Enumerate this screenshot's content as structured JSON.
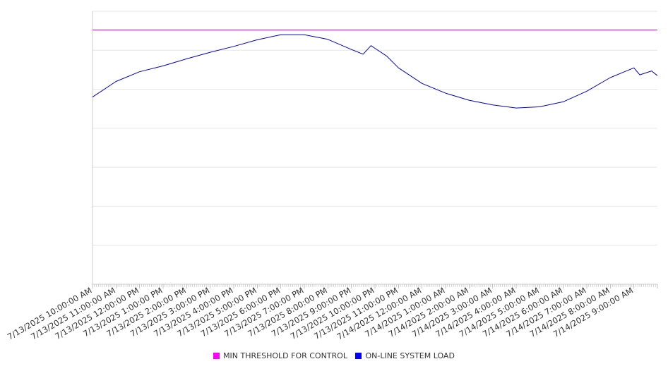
{
  "chart_data": {
    "type": "line",
    "title": "",
    "xlabel": "",
    "ylabel": "",
    "y_tick_labels_visible": false,
    "grid": "horizontal",
    "legend_position": "bottom-center",
    "ylim": [
      0,
      7
    ],
    "x_start": "7/13/2025 10:00:00 AM",
    "x_end": "7/14/2025 10:00:00 AM",
    "x_tick_labels": [
      "7/13/2025 10:00:00 AM",
      "7/13/2025 11:00:00 AM",
      "7/13/2025 12:00:00 PM",
      "7/13/2025 1:00:00 PM",
      "7/13/2025 2:00:00 PM",
      "7/13/2025 3:00:00 PM",
      "7/13/2025 4:00:00 PM",
      "7/13/2025 5:00:00 PM",
      "7/13/2025 6:00:00 PM",
      "7/13/2025 7:00:00 PM",
      "7/13/2025 8:00:00 PM",
      "7/13/2025 9:00:00 PM",
      "7/13/2025 10:00:00 PM",
      "7/13/2025 11:00:00 PM",
      "7/14/2025 12:00:00 AM",
      "7/14/2025 1:00:00 AM",
      "7/14/2025 2:00:00 AM",
      "7/14/2025 3:00:00 AM",
      "7/14/2025 4:00:00 AM",
      "7/14/2025 5:00:00 AM",
      "7/14/2025 6:00:00 AM",
      "7/14/2025 7:00:00 AM",
      "7/14/2025 8:00:00 AM",
      "7/14/2025 9:00:00 AM"
    ],
    "series": [
      {
        "name": "MIN THRESHOLD FOR CONTROL",
        "color": "#cc00cc",
        "points": [
          [
            "7/13/2025 10:00:00 AM",
            6.52
          ],
          [
            "7/14/2025 10:00:00 AM",
            6.52
          ]
        ]
      },
      {
        "name": "ON-LINE SYSTEM LOAD",
        "color": "#0000cc",
        "points": [
          [
            "7/13/2025 10:00:00 AM",
            4.8
          ],
          [
            "7/13/2025 11:00:00 AM",
            5.2
          ],
          [
            "7/13/2025 12:00:00 PM",
            5.45
          ],
          [
            "7/13/2025 1:00:00 PM",
            5.6
          ],
          [
            "7/13/2025 2:00:00 PM",
            5.78
          ],
          [
            "7/13/2025 3:00:00 PM",
            5.95
          ],
          [
            "7/13/2025 4:00:00 PM",
            6.1
          ],
          [
            "7/13/2025 5:00:00 PM",
            6.27
          ],
          [
            "7/13/2025 6:00:00 PM",
            6.4
          ],
          [
            "7/13/2025 7:00:00 PM",
            6.4
          ],
          [
            "7/13/2025 8:00:00 PM",
            6.28
          ],
          [
            "7/13/2025 9:00:00 PM",
            6.02
          ],
          [
            "7/13/2025 9:30:00 PM",
            5.9
          ],
          [
            "7/13/2025 9:50:00 PM",
            6.12
          ],
          [
            "7/13/2025 10:00:00 PM",
            6.05
          ],
          [
            "7/13/2025 10:30:00 PM",
            5.85
          ],
          [
            "7/13/2025 11:00:00 PM",
            5.55
          ],
          [
            "7/14/2025 12:00:00 AM",
            5.15
          ],
          [
            "7/14/2025 1:00:00 AM",
            4.9
          ],
          [
            "7/14/2025 2:00:00 AM",
            4.72
          ],
          [
            "7/14/2025 3:00:00 AM",
            4.6
          ],
          [
            "7/14/2025 4:00:00 AM",
            4.52
          ],
          [
            "7/14/2025 5:00:00 AM",
            4.55
          ],
          [
            "7/14/2025 6:00:00 AM",
            4.68
          ],
          [
            "7/14/2025 7:00:00 AM",
            4.95
          ],
          [
            "7/14/2025 8:00:00 AM",
            5.3
          ],
          [
            "7/14/2025 9:00:00 AM",
            5.55
          ],
          [
            "7/14/2025 9:15:00 AM",
            5.37
          ],
          [
            "7/14/2025 9:45:00 AM",
            5.47
          ],
          [
            "7/14/2025 10:00:00 AM",
            5.35
          ]
        ]
      }
    ]
  }
}
